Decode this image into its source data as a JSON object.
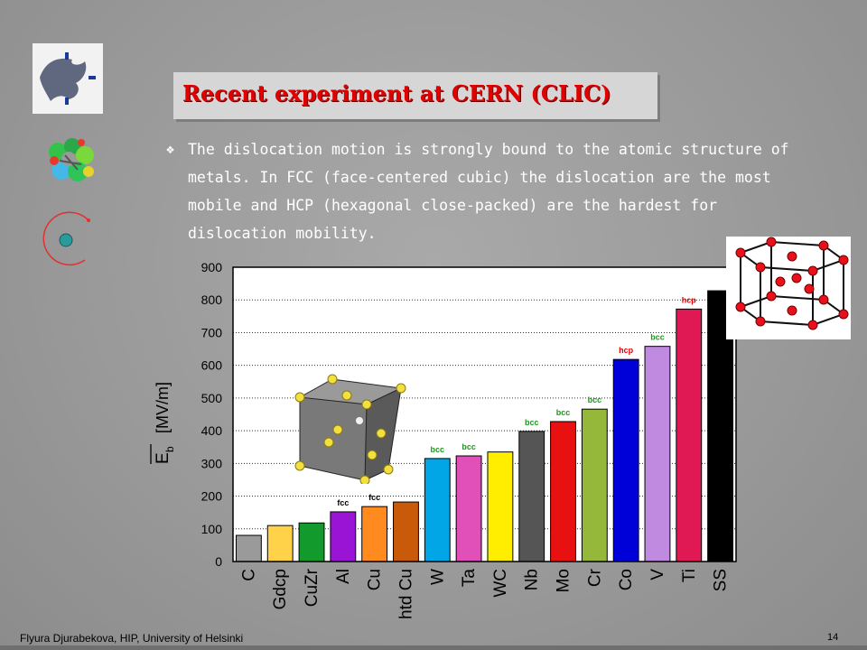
{
  "title": "Recent experiment at CERN (CLIC)",
  "bullet": {
    "mark": "",
    "text": "The dislocation motion is strongly bound to the atomic structure of metals. In FCC (face-centered cubic) the dislocation are the most mobile and HCP (hexagonal close-packed) are the hardest for dislocation mobility."
  },
  "footer": "Flyura Djurabekova, HIP, University of Helsinki",
  "page_number": "14",
  "icons": [
    "university-logo-icon",
    "molecule-icon",
    "atom-orbit-icon",
    "fcc-lattice-icon",
    "hcp-lattice-icon"
  ],
  "chart_data": {
    "type": "bar",
    "ylabel": "E_b [MV/m]",
    "ylim": [
      0,
      900
    ],
    "yticks": [
      0,
      100,
      200,
      300,
      400,
      500,
      600,
      700,
      800,
      900
    ],
    "grid": true,
    "categories": [
      "C",
      "Gdcp",
      "CuZr",
      "Al",
      "Cu",
      "htd Cu",
      "W",
      "Ta",
      "WC",
      "Nb",
      "Mo",
      "Cr",
      "Co",
      "V",
      "Ti",
      "SS"
    ],
    "values": [
      80,
      110,
      118,
      152,
      168,
      182,
      315,
      323,
      335,
      398,
      428,
      466,
      618,
      658,
      772,
      828
    ],
    "colors": [
      "#9a9a9a",
      "#ffd24a",
      "#129a2c",
      "#9a14d6",
      "#ff8a20",
      "#c85a0a",
      "#00a6e6",
      "#e050b8",
      "#ffee00",
      "#555555",
      "#e81010",
      "#96b83a",
      "#0000d8",
      "#c08ae0",
      "#e01854",
      "#000000"
    ],
    "annotations": [
      {
        "category": "Al",
        "label": "fcc",
        "color": "#000000"
      },
      {
        "category": "Cu",
        "label": "fcc",
        "color": "#000000"
      },
      {
        "category": "W",
        "label": "bcc",
        "color": "#1a9a1a"
      },
      {
        "category": "Ta",
        "label": "bcc",
        "color": "#1a9a1a"
      },
      {
        "category": "Nb",
        "label": "bcc",
        "color": "#1a9a1a"
      },
      {
        "category": "Mo",
        "label": "bcc",
        "color": "#1a9a1a"
      },
      {
        "category": "Cr",
        "label": "bcc",
        "color": "#1a9a1a"
      },
      {
        "category": "Co",
        "label": "hcp",
        "color": "#e00000"
      },
      {
        "category": "V",
        "label": "bcc",
        "color": "#1a9a1a"
      },
      {
        "category": "Ti",
        "label": "hcp",
        "color": "#e00000"
      }
    ]
  }
}
